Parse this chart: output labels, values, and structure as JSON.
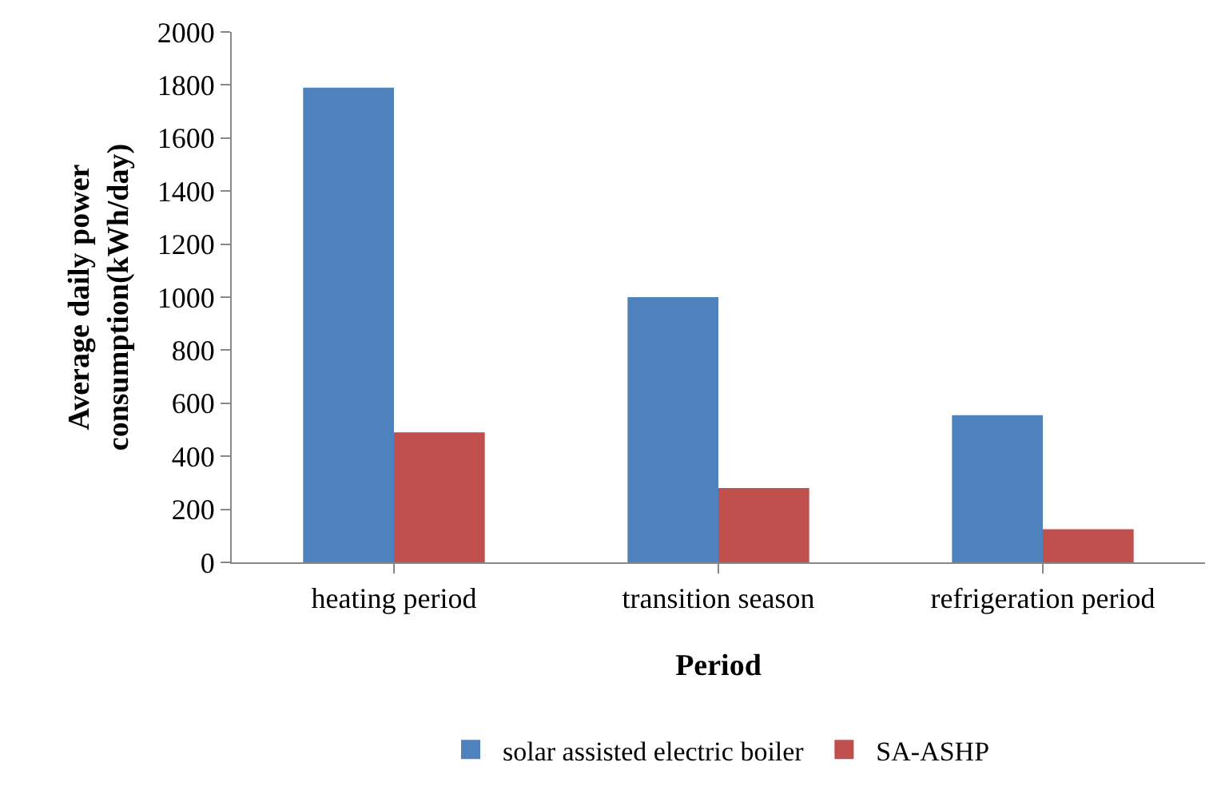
{
  "chart_data": {
    "type": "bar",
    "xlabel": "Period",
    "ylabel": "Average daily power consumption(kWh/day)",
    "categories": [
      "heating period",
      "transition season",
      "refrigeration period"
    ],
    "series": [
      {
        "name": "solar assisted electric boiler",
        "color": "#4f81bd",
        "values": [
          1790,
          1000,
          555
        ]
      },
      {
        "name": "SA-ASHP",
        "color": "#c0504d",
        "values": [
          490,
          280,
          125
        ]
      }
    ],
    "ylim": [
      0,
      2000
    ],
    "yticks": [
      0,
      200,
      400,
      600,
      800,
      1000,
      1200,
      1400,
      1600,
      1800,
      2000
    ],
    "grid": false,
    "legend": "bottom"
  }
}
